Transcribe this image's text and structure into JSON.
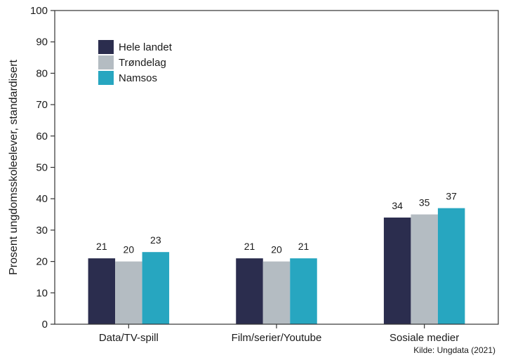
{
  "chart_data": {
    "type": "bar",
    "categories": [
      "Data/TV-spill",
      "Film/serier/Youtube",
      "Sosiale medier"
    ],
    "series": [
      {
        "name": "Hele landet",
        "values": [
          21,
          21,
          34
        ],
        "color": "#2b2d4e"
      },
      {
        "name": "Trøndelag",
        "values": [
          20,
          20,
          35
        ],
        "color": "#b4bcc2"
      },
      {
        "name": "Namsos",
        "values": [
          23,
          21,
          37
        ],
        "color": "#27a6c0"
      }
    ],
    "value_labels": [
      [
        "21",
        "21",
        "34"
      ],
      [
        "20",
        "20",
        "35"
      ],
      [
        "23",
        "21",
        "37"
      ]
    ],
    "ylabel": "Prosent ungdomsskoleelever, standardisert",
    "ylim": [
      0,
      100
    ],
    "yticks": [
      0,
      10,
      20,
      30,
      40,
      50,
      60,
      70,
      80,
      90,
      100
    ],
    "grid": false,
    "legend_position": "top-left",
    "source": "Kilde: Ungdata (2021)"
  }
}
